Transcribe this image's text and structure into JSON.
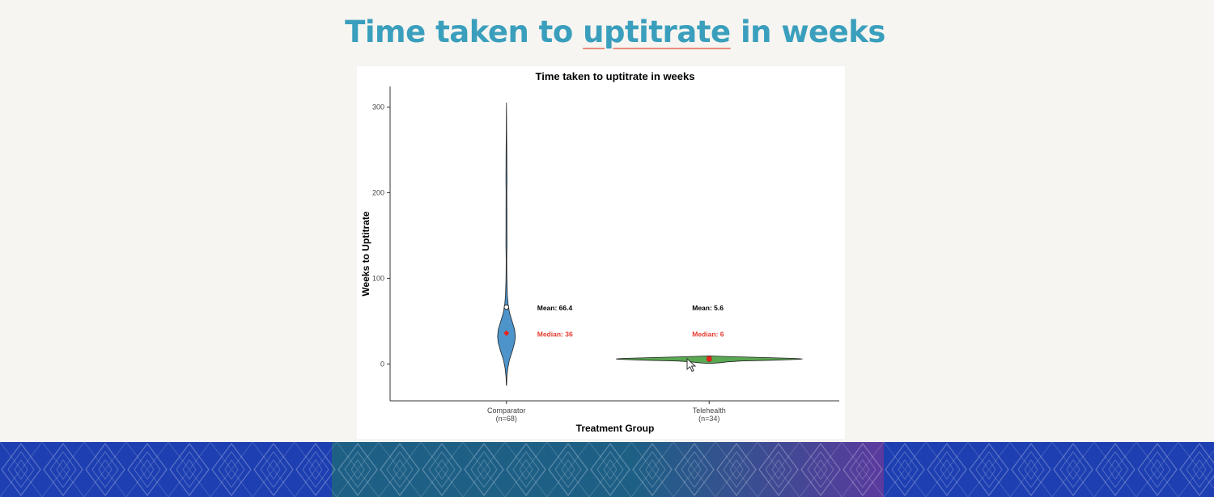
{
  "slide": {
    "title_before": "Time taken to ",
    "title_underlined": "uptitrate",
    "title_after": " in weeks"
  },
  "colors": {
    "title": "#3a9fbd",
    "comparator_fill": "#4d94cb",
    "telehealth_fill": "#5aa852",
    "median_marker": "#e8231c",
    "median_text": "#e53a2e",
    "banner_blue": "#1d3fb1",
    "banner_teal": "#1e5f86",
    "banner_purple": "#5a3a9e"
  },
  "chart_data": {
    "type": "violin",
    "title": "Time taken to uptitrate in weeks",
    "xlabel": "Treatment Group",
    "ylabel": "Weeks to Uptitrate",
    "ylim": [
      -43,
      324
    ],
    "yticks": [
      0,
      100,
      200,
      300
    ],
    "categories": [
      {
        "label": "Comparator",
        "n_label": "(n=68)"
      },
      {
        "label": "Telehealth",
        "n_label": "(n=34)"
      }
    ],
    "series": [
      {
        "mean": 66.4,
        "median": 36,
        "mean_label": "Mean: 66.4",
        "median_label": "Median: 36",
        "min": -25,
        "max": 305,
        "profile": [
          [
            -25,
            0.003
          ],
          [
            -15,
            0.01
          ],
          [
            -5,
            0.028
          ],
          [
            5,
            0.065
          ],
          [
            15,
            0.125
          ],
          [
            25,
            0.175
          ],
          [
            32,
            0.19
          ],
          [
            40,
            0.175
          ],
          [
            50,
            0.12
          ],
          [
            60,
            0.065
          ],
          [
            70,
            0.035
          ],
          [
            80,
            0.02
          ],
          [
            100,
            0.009
          ],
          [
            120,
            0.006
          ],
          [
            140,
            0.012
          ],
          [
            160,
            0.009
          ],
          [
            180,
            0.01
          ],
          [
            200,
            0.007
          ],
          [
            215,
            0.012
          ],
          [
            230,
            0.01
          ],
          [
            250,
            0.007
          ],
          [
            270,
            0.005
          ],
          [
            290,
            0.002
          ],
          [
            305,
            0.0
          ]
        ]
      },
      {
        "mean": 5.6,
        "median": 6,
        "mean_label": "Mean: 5.6",
        "median_label": "Median: 6",
        "min": 0.5,
        "max": 9.5,
        "profile": [
          [
            0.5,
            0.0
          ],
          [
            1.5,
            0.12
          ],
          [
            2.5,
            0.19
          ],
          [
            3.5,
            0.34
          ],
          [
            4.5,
            0.7
          ],
          [
            5.5,
            0.97
          ],
          [
            6.0,
            1.0
          ],
          [
            6.5,
            0.92
          ],
          [
            7.5,
            0.62
          ],
          [
            8.5,
            0.25
          ],
          [
            9.5,
            0.0
          ]
        ]
      }
    ]
  }
}
